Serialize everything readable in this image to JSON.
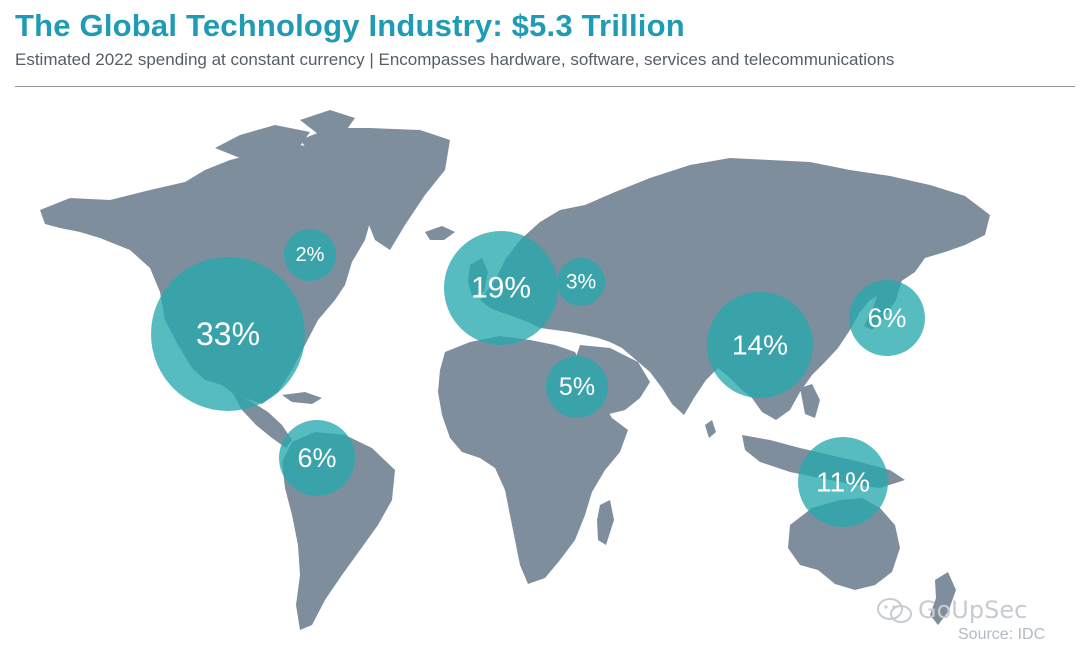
{
  "header": {
    "title": "The Global Technology Industry: $5.3 Trillion",
    "subtitle": "Estimated 2022 spending at constant currency | Encompasses hardware, software, services and telecommunications"
  },
  "map": {
    "land_color": "#7f8e9c",
    "bubble_color": "#26a9ad",
    "regions": [
      {
        "id": "north-america",
        "label": "33%",
        "value": 33
      },
      {
        "id": "canada",
        "label": "2%",
        "value": 2
      },
      {
        "id": "latin-america",
        "label": "6%",
        "value": 6
      },
      {
        "id": "western-europe",
        "label": "19%",
        "value": 19
      },
      {
        "id": "central-eastern-europe",
        "label": "3%",
        "value": 3
      },
      {
        "id": "middle-east-africa",
        "label": "5%",
        "value": 5
      },
      {
        "id": "china",
        "label": "14%",
        "value": 14
      },
      {
        "id": "japan",
        "label": "6%",
        "value": 6
      },
      {
        "id": "asia-pacific",
        "label": "11%",
        "value": 11
      }
    ]
  },
  "footer": {
    "watermark": "GoUpSec",
    "source": "Source: IDC"
  }
}
